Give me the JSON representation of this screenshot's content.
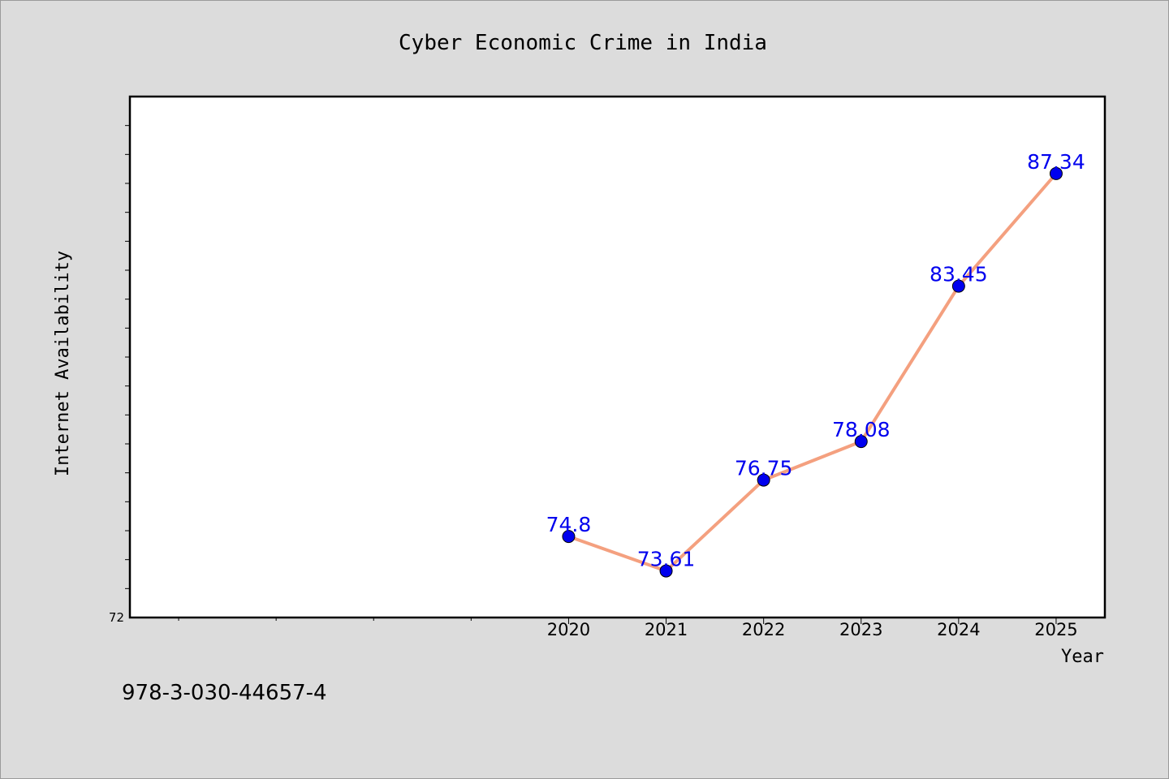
{
  "chart_data": {
    "type": "line",
    "title": "Cyber Economic Crime in India",
    "xlabel": "Year",
    "ylabel": "Internet Availability",
    "categories": [
      "2020",
      "2021",
      "2022",
      "2023",
      "2024",
      "2025"
    ],
    "series": [
      {
        "values": [
          74.8,
          73.61,
          76.75,
          78.08,
          83.45,
          87.34
        ]
      }
    ],
    "data_labels": [
      "74.8",
      "73.61",
      "76.75",
      "78.08",
      "83.45",
      "87.34"
    ],
    "y_tick_labels": [
      "72"
    ],
    "xlim": [
      -4.5,
      5.5
    ],
    "ylim": [
      72,
      90
    ],
    "grid": false,
    "line_color": "#f4a07f",
    "marker_color": "#0000ee",
    "label_color": "#0000ee"
  },
  "footer_text": "978-3-030-44657-4"
}
